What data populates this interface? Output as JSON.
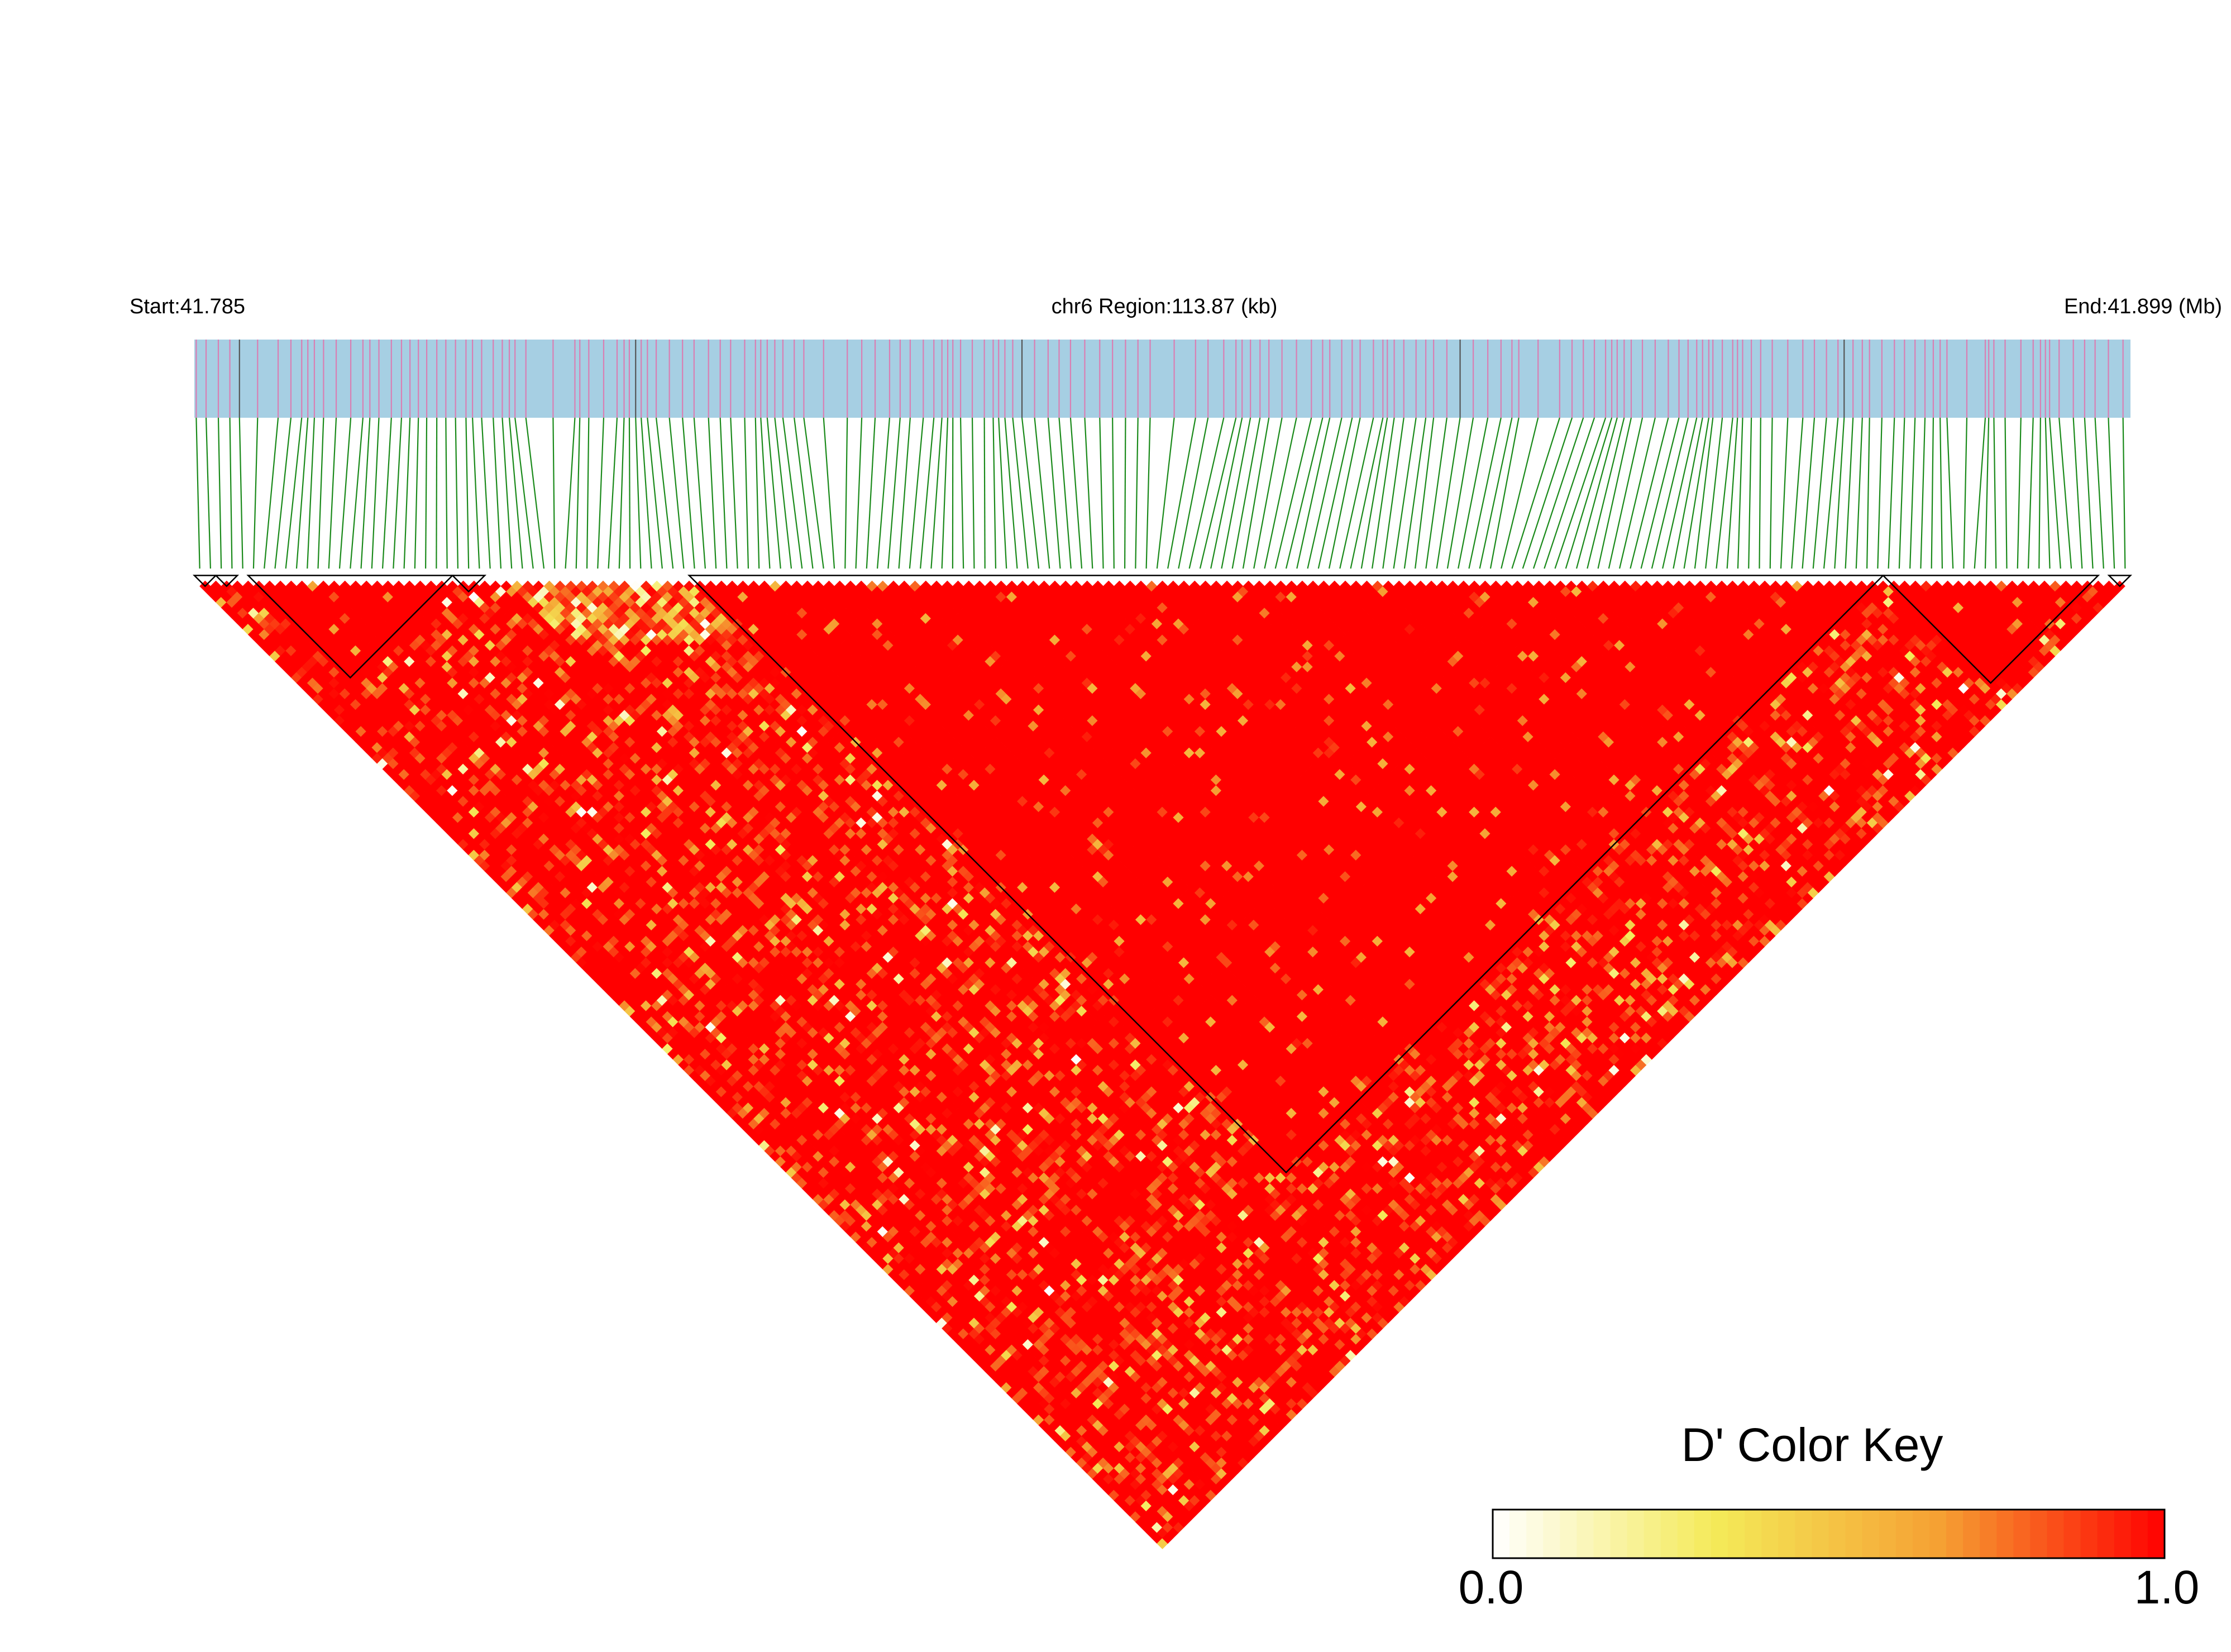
{
  "chart_data": {
    "type": "heatmap",
    "subtype": "linkage-disequilibrium-triangle",
    "chromosome": "chr6",
    "start_label": "Start:41.785",
    "region_label": "chr6 Region:113.87 (kb)",
    "end_label": "End:41.899 (Mb)",
    "start_mb": 41.785,
    "end_mb": 41.899,
    "region_kb": 113.87,
    "n_snps": 180,
    "metric": "D'",
    "color_key": {
      "title": "D' Color Key",
      "min_label": "0.0",
      "max_label": "1.0",
      "min": 0.0,
      "max": 1.0,
      "colors": [
        "#ffffff",
        "#f4ea58",
        "#f5a033",
        "#ff0000"
      ]
    },
    "blocks": [
      {
        "first_snp": 1,
        "last_snp": 2
      },
      {
        "first_snp": 3,
        "last_snp": 4
      },
      {
        "first_snp": 6,
        "last_snp": 24
      },
      {
        "first_snp": 25,
        "last_snp": 27
      },
      {
        "first_snp": 47,
        "last_snp": 157
      },
      {
        "first_snp": 158,
        "last_snp": 177
      },
      {
        "first_snp": 179,
        "last_snp": 180
      }
    ],
    "low_d_band": {
      "description": "lower D' values concentrated along adjacent-SNP diagonal from SNP 30 to SNP 108",
      "typical_d": 0.6
    },
    "background_d": 1.0
  },
  "colors": {
    "track_fill": "#a6cfe3",
    "track_snp_line": "#d97fb3",
    "track_dark_line": "#555555",
    "connector": "#1a8a1a",
    "block_outline": "#000000"
  }
}
